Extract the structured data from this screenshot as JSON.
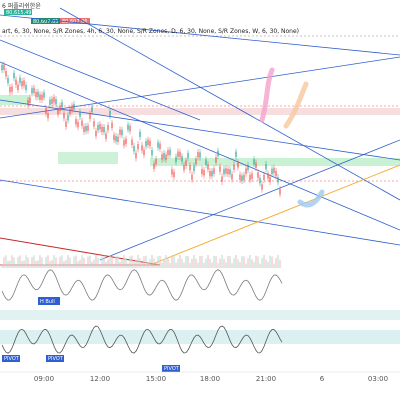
{
  "header": {
    "line1": "6 퍼플리쉬한윤",
    "line2": "art, 6, 30, None, S/R Zones, 4h, 6, 30, None, S/R Zones, D, 6, 30, None, S/R Zones, W, 6, 30, None)",
    "price_tags": [
      "80,615,49",
      "80,607.05",
      "80,607.06"
    ]
  },
  "indicators": {
    "h_bull": "H Bull",
    "pivot_labels": [
      "PIVOT",
      "PIVOT",
      "PIVOT"
    ]
  },
  "colors": {
    "up": "#26a69a",
    "down": "#ef5350",
    "trend": "#2f5fd0",
    "orange": "#f5a623",
    "zone": "#a5e8b6",
    "osc": "#7a7a7a"
  },
  "chart_data": {
    "type": "line",
    "title": "",
    "x_ticks": [
      "09:00",
      "12:00",
      "15:00",
      "18:00",
      "21:00",
      "6",
      "03:00"
    ],
    "xlabel": "",
    "ylabel": "",
    "note": "Candlestick price chart with trendlines, support/resistance zones and two oscillator panes",
    "series": [
      {
        "values": [
          98,
          95,
          92,
          88,
          84,
          80,
          76,
          74,
          72,
          70,
          68,
          66,
          62,
          58,
          55,
          52,
          50,
          49,
          48,
          47,
          46,
          45,
          44,
          44,
          43,
          42,
          41,
          40,
          38
        ]
      }
    ]
  }
}
